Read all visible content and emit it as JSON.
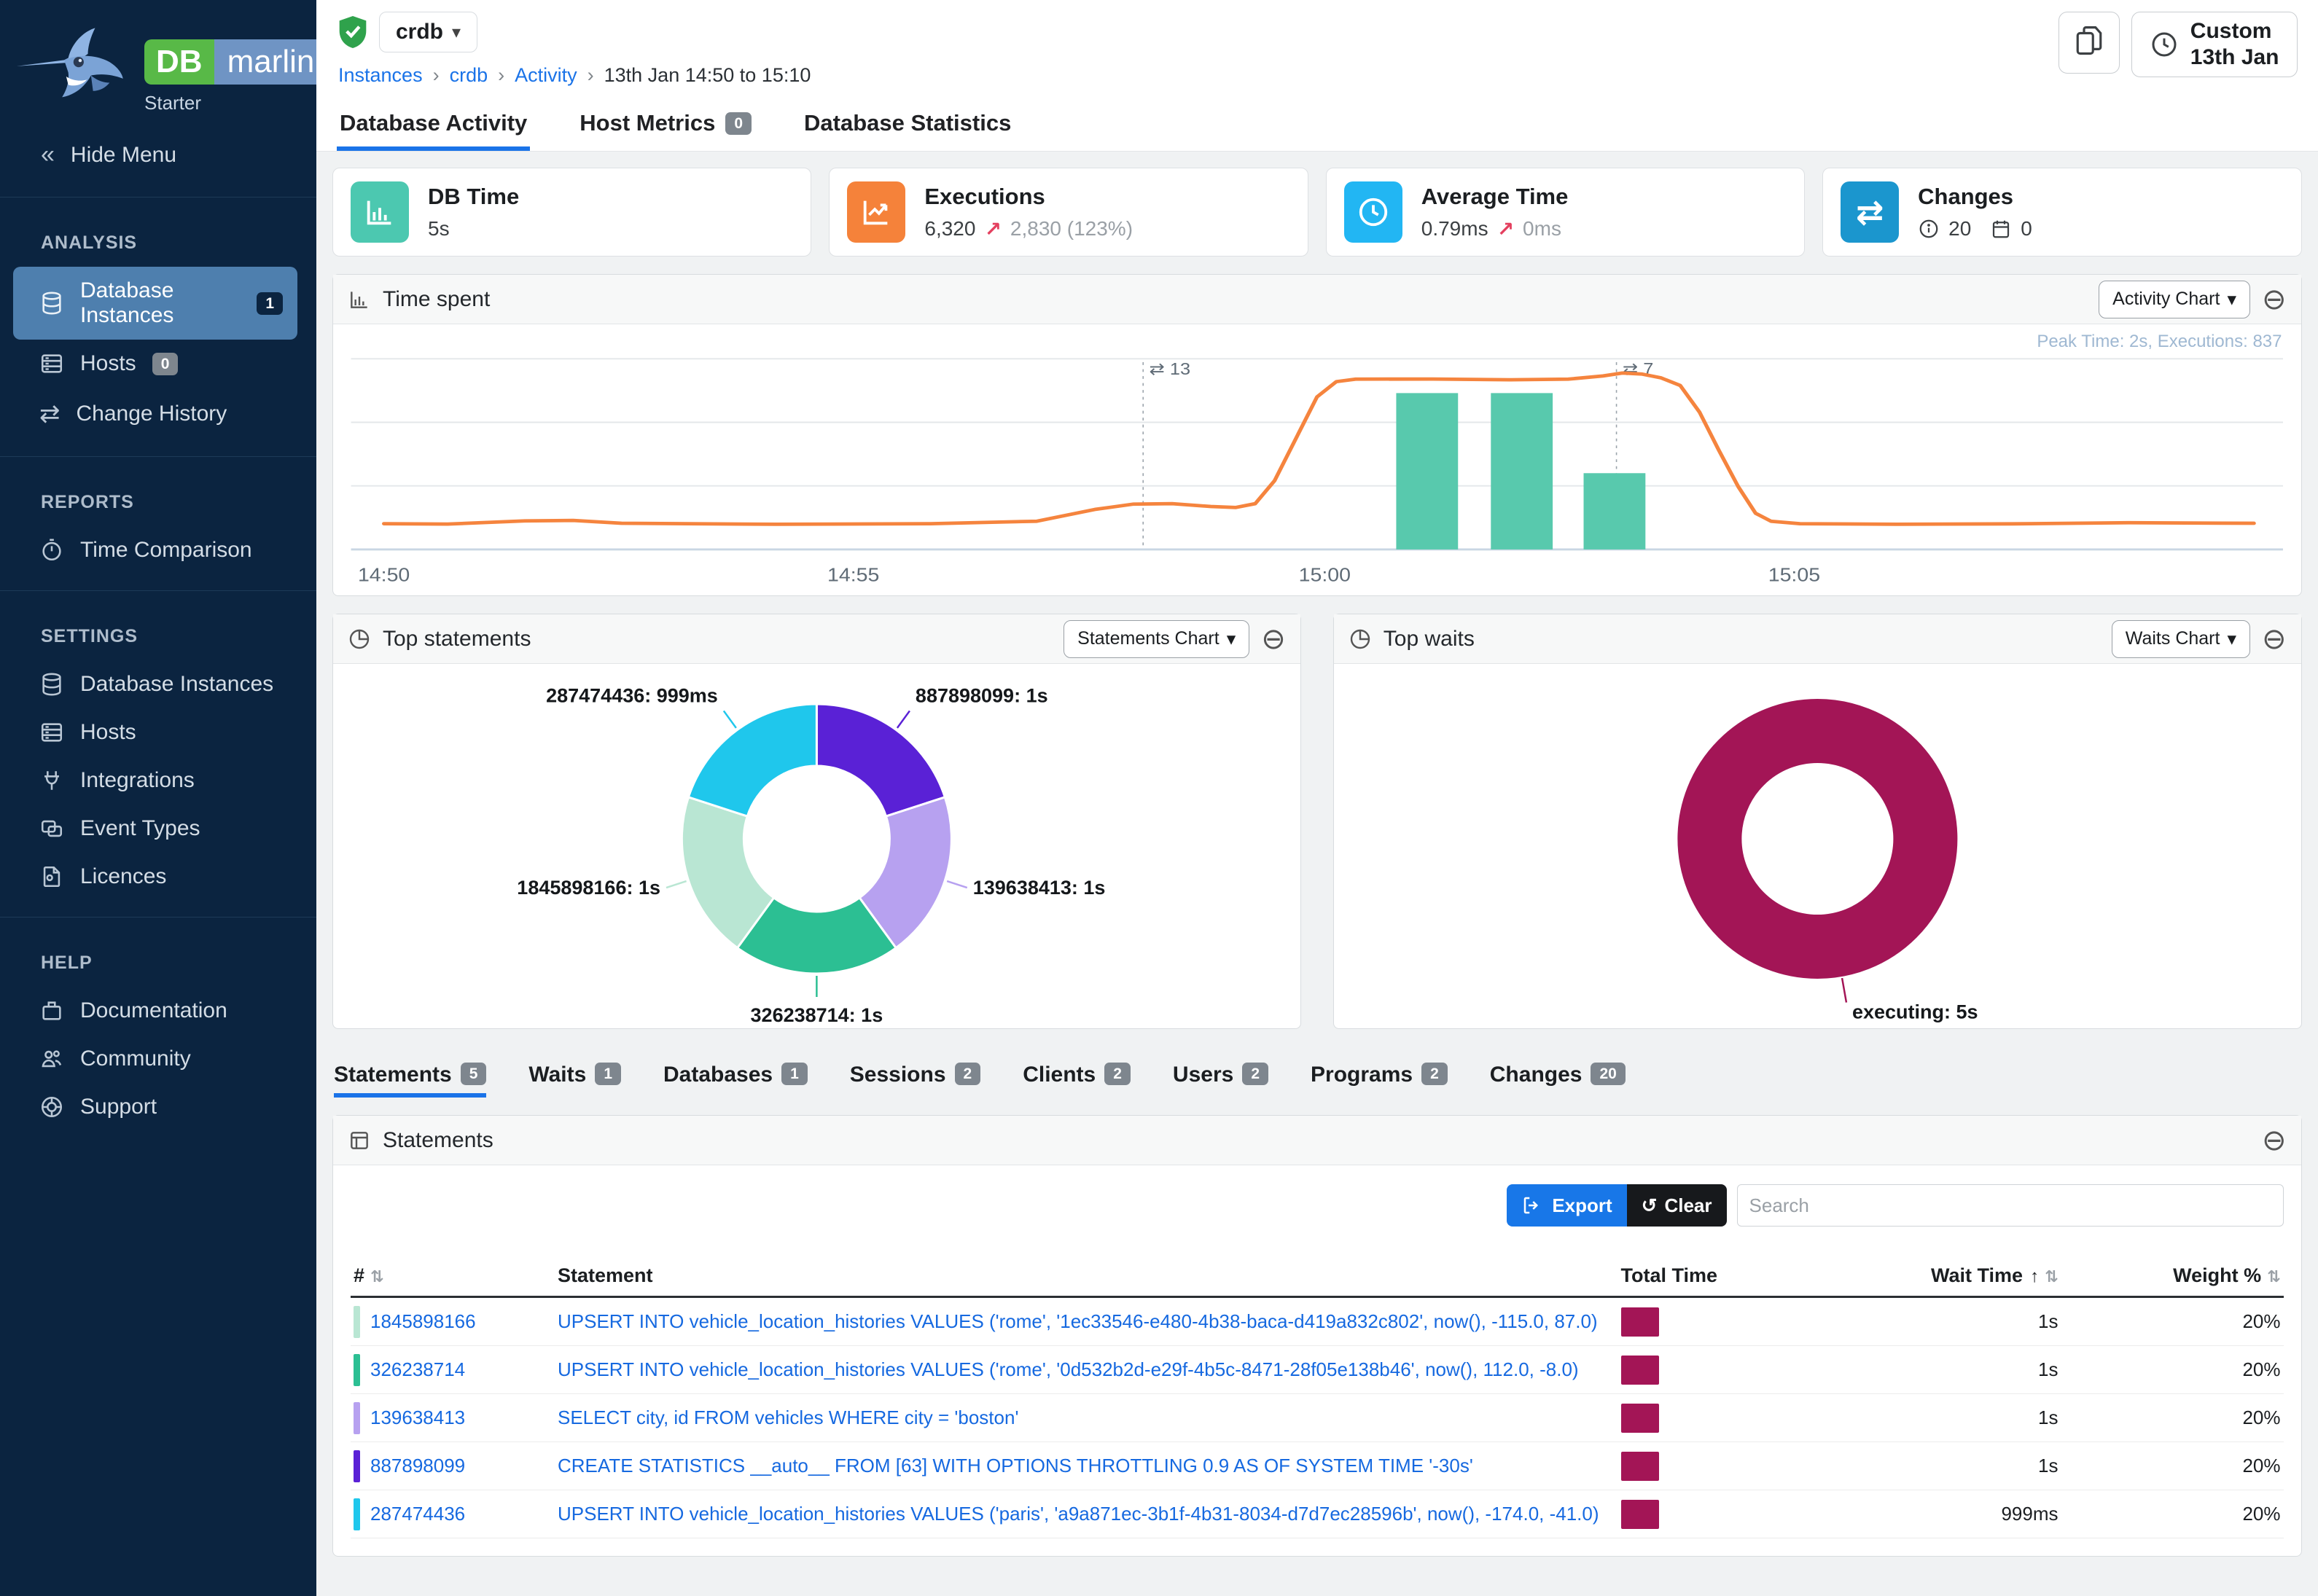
{
  "icons": {
    "collapse": "«",
    "chevron_down": "▾",
    "minus_circle": "⊖",
    "swap": "⇄",
    "up_right": "↗",
    "sort": "⇅",
    "sort_up": "↑",
    "undo": "↺",
    "crumb_sep": "›",
    "info": "ⓘ"
  },
  "sidebar": {
    "logo": {
      "db": "DB",
      "marlin": "marlin",
      "edition": "Starter"
    },
    "hide_menu": "Hide Menu",
    "sections": {
      "analysis": {
        "title": "ANALYSIS",
        "items": [
          {
            "label": "Database Instances",
            "badge": "1"
          },
          {
            "label": "Hosts",
            "badge": "0"
          },
          {
            "label": "Change History"
          }
        ]
      },
      "reports": {
        "title": "REPORTS",
        "items": [
          {
            "label": "Time Comparison"
          }
        ]
      },
      "settings": {
        "title": "SETTINGS",
        "items": [
          {
            "label": "Database Instances"
          },
          {
            "label": "Hosts"
          },
          {
            "label": "Integrations"
          },
          {
            "label": "Event Types"
          },
          {
            "label": "Licences"
          }
        ]
      },
      "help": {
        "title": "HELP",
        "items": [
          {
            "label": "Documentation"
          },
          {
            "label": "Community"
          },
          {
            "label": "Support"
          }
        ]
      }
    }
  },
  "topbar": {
    "instance": "crdb",
    "breadcrumbs": [
      "Instances",
      "crdb",
      "Activity",
      "13th Jan 14:50 to 15:10"
    ],
    "custom_button": {
      "line1": "Custom",
      "line2": "13th Jan"
    }
  },
  "tabs": [
    {
      "label": "Database Activity"
    },
    {
      "label": "Host Metrics",
      "badge": "0"
    },
    {
      "label": "Database Statistics"
    }
  ],
  "cards": [
    {
      "title": "DB Time",
      "value": "5s",
      "color": "#4cc8b0"
    },
    {
      "title": "Executions",
      "value": "6,320",
      "delta": "2,830 (123%)",
      "color": "#f5823a"
    },
    {
      "title": "Average Time",
      "value": "0.79ms",
      "delta": "0ms",
      "color": "#22b6f3"
    },
    {
      "title": "Changes",
      "info_count": "20",
      "calendar_count": "0",
      "color": "#1b96ce"
    }
  ],
  "panels": {
    "time_spent": {
      "title": "Time spent",
      "button": "Activity Chart",
      "peak": "Peak Time: 2s, Executions: 837"
    },
    "top_statements": {
      "title": "Top statements",
      "button": "Statements Chart"
    },
    "top_waits": {
      "title": "Top waits",
      "button": "Waits Chart"
    }
  },
  "chart_data": [
    {
      "type": "line",
      "title": "Time spent",
      "series_name": "DB Time",
      "line_color": "#f5843e",
      "bar_color": "#58c9ad",
      "ylim": [
        0,
        2
      ],
      "x_ticks": [
        {
          "label": "14:50",
          "f": 0.017
        },
        {
          "label": "14:55",
          "f": 0.26
        },
        {
          "label": "15:00",
          "f": 0.504
        },
        {
          "label": "15:05",
          "f": 0.747
        }
      ],
      "annotations": [
        {
          "f": 0.41,
          "label": "13"
        },
        {
          "f": 0.655,
          "label": "7"
        }
      ],
      "peak_note": "Peak Time: 2s, Executions: 837",
      "points": [
        [
          0.017,
          0.135
        ],
        [
          0.05,
          0.133
        ],
        [
          0.09,
          0.15
        ],
        [
          0.115,
          0.152
        ],
        [
          0.14,
          0.137
        ],
        [
          0.22,
          0.132
        ],
        [
          0.3,
          0.135
        ],
        [
          0.355,
          0.148
        ],
        [
          0.385,
          0.21
        ],
        [
          0.405,
          0.238
        ],
        [
          0.425,
          0.24
        ],
        [
          0.445,
          0.225
        ],
        [
          0.458,
          0.22
        ],
        [
          0.468,
          0.24
        ],
        [
          0.478,
          0.36
        ],
        [
          0.49,
          0.6
        ],
        [
          0.5,
          0.8
        ],
        [
          0.51,
          0.88
        ],
        [
          0.52,
          0.893
        ],
        [
          0.56,
          0.894
        ],
        [
          0.6,
          0.89
        ],
        [
          0.63,
          0.893
        ],
        [
          0.648,
          0.91
        ],
        [
          0.658,
          0.925
        ],
        [
          0.668,
          0.92
        ],
        [
          0.678,
          0.9
        ],
        [
          0.688,
          0.86
        ],
        [
          0.698,
          0.72
        ],
        [
          0.708,
          0.52
        ],
        [
          0.718,
          0.33
        ],
        [
          0.727,
          0.19
        ],
        [
          0.735,
          0.148
        ],
        [
          0.75,
          0.135
        ],
        [
          0.8,
          0.132
        ],
        [
          0.86,
          0.134
        ],
        [
          0.92,
          0.14
        ],
        [
          0.985,
          0.137
        ]
      ],
      "bars": [
        {
          "x": 0.557,
          "h": 0.82
        },
        {
          "x": 0.606,
          "h": 0.82
        },
        {
          "x": 0.654,
          "h": 0.4
        }
      ]
    },
    {
      "type": "pie",
      "title": "Top statements",
      "slices": [
        {
          "label": "887898099",
          "value": "1s",
          "pct": 20,
          "color": "#5a21d6"
        },
        {
          "label": "139638413",
          "value": "1s",
          "pct": 20,
          "color": "#b7a1f0"
        },
        {
          "label": "326238714",
          "value": "1s",
          "pct": 20,
          "color": "#2cbf93"
        },
        {
          "label": "1845898166",
          "value": "1s",
          "pct": 20,
          "color": "#b9e6d3"
        },
        {
          "label": "287474436",
          "value": "999ms",
          "pct": 20,
          "color": "#1fc7ec"
        }
      ]
    },
    {
      "type": "pie",
      "title": "Top waits",
      "slices": [
        {
          "label": "executing",
          "value": "5s",
          "pct": 100,
          "color": "#a31556"
        }
      ]
    }
  ],
  "subtabs": [
    {
      "label": "Statements",
      "badge": "5"
    },
    {
      "label": "Waits",
      "badge": "1"
    },
    {
      "label": "Databases",
      "badge": "1"
    },
    {
      "label": "Sessions",
      "badge": "2"
    },
    {
      "label": "Clients",
      "badge": "2"
    },
    {
      "label": "Users",
      "badge": "2"
    },
    {
      "label": "Programs",
      "badge": "2"
    },
    {
      "label": "Changes",
      "badge": "20"
    }
  ],
  "statements": {
    "title": "Statements",
    "export_label": "Export",
    "clear_label": "Clear",
    "search_placeholder": "Search",
    "columns": {
      "num": "#",
      "statement": "Statement",
      "total": "Total Time",
      "wait": "Wait Time",
      "weight": "Weight %"
    },
    "total_time_color": "#a31556",
    "rows": [
      {
        "id": "1845898166",
        "color": "#b9e6d3",
        "sql": "UPSERT INTO vehicle_location_histories VALUES ('rome', '1ec33546-e480-4b38-baca-d419a832c802', now(), -115.0, 87.0)",
        "wait": "1s",
        "weight": "20%"
      },
      {
        "id": "326238714",
        "color": "#2cbf93",
        "sql": "UPSERT INTO vehicle_location_histories VALUES ('rome', '0d532b2d-e29f-4b5c-8471-28f05e138b46', now(), 112.0, -8.0)",
        "wait": "1s",
        "weight": "20%"
      },
      {
        "id": "139638413",
        "color": "#b7a1f0",
        "sql": "SELECT city, id FROM vehicles WHERE city = 'boston'",
        "wait": "1s",
        "weight": "20%"
      },
      {
        "id": "887898099",
        "color": "#5a21d6",
        "sql": "CREATE STATISTICS __auto__ FROM [63] WITH OPTIONS THROTTLING 0.9 AS OF SYSTEM TIME '-30s'",
        "wait": "1s",
        "weight": "20%"
      },
      {
        "id": "287474436",
        "color": "#1fc7ec",
        "sql": "UPSERT INTO vehicle_location_histories VALUES ('paris', 'a9a871ec-3b1f-4b31-8034-d7d7ec28596b', now(), -174.0, -41.0)",
        "wait": "999ms",
        "weight": "20%"
      }
    ]
  }
}
